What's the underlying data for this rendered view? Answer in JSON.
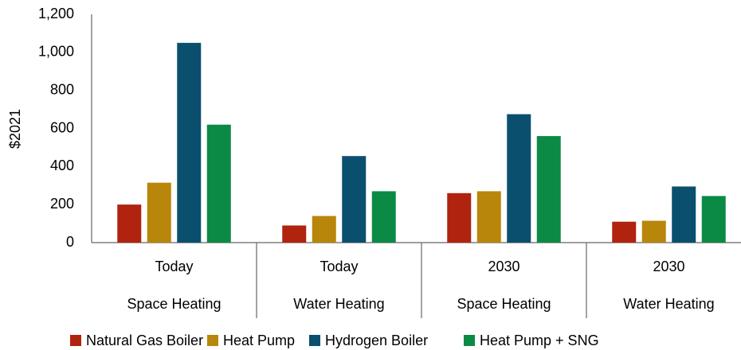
{
  "chart_data": {
    "type": "bar",
    "y_label": "$2021",
    "categories": [
      "Today",
      "Today",
      "2030",
      "2030"
    ],
    "subcategories": [
      "Space Heating",
      "Water Heating",
      "Space Heating",
      "Water Heating"
    ],
    "series": [
      {
        "name": "Natural Gas Boiler",
        "color": "#b0230e",
        "values": [
          200,
          90,
          260,
          110
        ]
      },
      {
        "name": "Heat Pump",
        "color": "#b8860b",
        "values": [
          315,
          140,
          270,
          115
        ]
      },
      {
        "name": "Hydrogen Boiler",
        "color": "#0a4f6e",
        "values": [
          1050,
          455,
          675,
          295
        ]
      },
      {
        "name": "Heat Pump + SNG",
        "color": "#0b8a45",
        "values": [
          620,
          270,
          560,
          245
        ]
      }
    ],
    "ylim": [
      0,
      1200
    ],
    "yticks": [
      0,
      200,
      400,
      600,
      800,
      {
        "value": 1000,
        "label": "1,000"
      },
      {
        "value": 1200,
        "label": "1,200"
      }
    ],
    "grid": false
  }
}
